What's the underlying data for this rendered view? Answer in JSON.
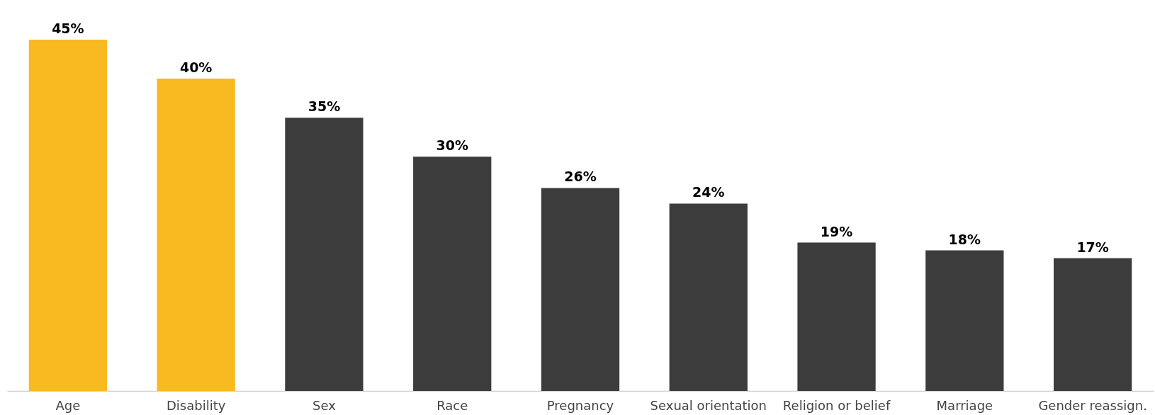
{
  "chart_data": {
    "type": "bar",
    "categories": [
      "Age",
      "Disability",
      "Sex",
      "Race",
      "Pregnancy",
      "Sexual orientation",
      "Religion or belief",
      "Marriage",
      "Gender reassign."
    ],
    "values": [
      45,
      40,
      35,
      30,
      26,
      24,
      19,
      18,
      17
    ],
    "colors": [
      "#f9b921",
      "#f9b921",
      "#3c3c3c",
      "#3c3c3c",
      "#3c3c3c",
      "#3c3c3c",
      "#3c3c3c",
      "#3c3c3c",
      "#3c3c3c"
    ],
    "value_labels": [
      "45%",
      "40%",
      "35%",
      "30%",
      "26%",
      "24%",
      "19%",
      "18%",
      "17%"
    ]
  }
}
